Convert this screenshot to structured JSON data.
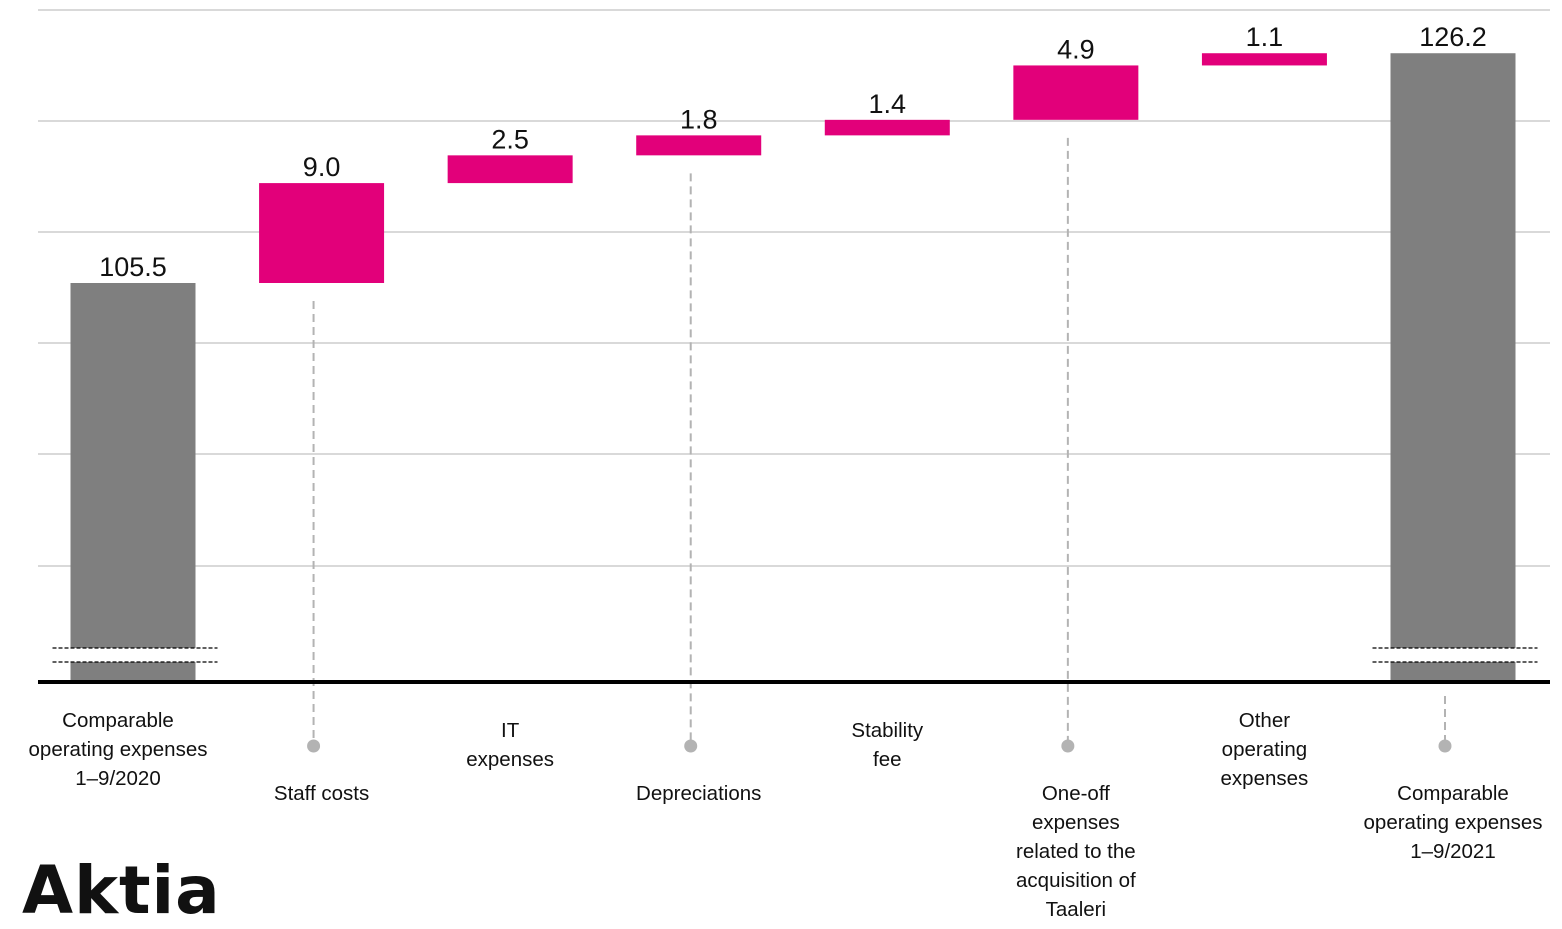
{
  "brand": {
    "logo_text": "Aktia"
  },
  "colors": {
    "total": "#7f7f7f",
    "increase": "#e2007a",
    "gridline": "#d9d9d9",
    "axis": "#000000",
    "connector": "#b3b3b3"
  },
  "chart_data": {
    "type": "bar",
    "subtype": "waterfall",
    "title": "",
    "xlabel": "",
    "ylabel": "",
    "grid": true,
    "axis_break": true,
    "categories": [
      [
        "Comparable",
        "operating expenses",
        "1–9/2020"
      ],
      [
        "Staff costs"
      ],
      [
        "IT",
        "expenses"
      ],
      [
        "Depreciations"
      ],
      [
        "Stability",
        "fee"
      ],
      [
        "One-off",
        "expenses",
        "related to the",
        "acquisition of",
        "Taaleri"
      ],
      [
        "Other",
        "operating",
        "expenses"
      ],
      [
        "Comparable",
        "operating expenses",
        "1–9/2021"
      ]
    ],
    "values": [
      105.5,
      9.0,
      2.5,
      1.8,
      1.4,
      4.9,
      1.1,
      126.2
    ],
    "value_labels": [
      "105.5",
      "9.0",
      "2.5",
      "1.8",
      "1.4",
      "4.9",
      "1.1",
      "126.2"
    ],
    "bar_kind": [
      "total",
      "increase",
      "increase",
      "increase",
      "increase",
      "increase",
      "increase",
      "total"
    ]
  }
}
